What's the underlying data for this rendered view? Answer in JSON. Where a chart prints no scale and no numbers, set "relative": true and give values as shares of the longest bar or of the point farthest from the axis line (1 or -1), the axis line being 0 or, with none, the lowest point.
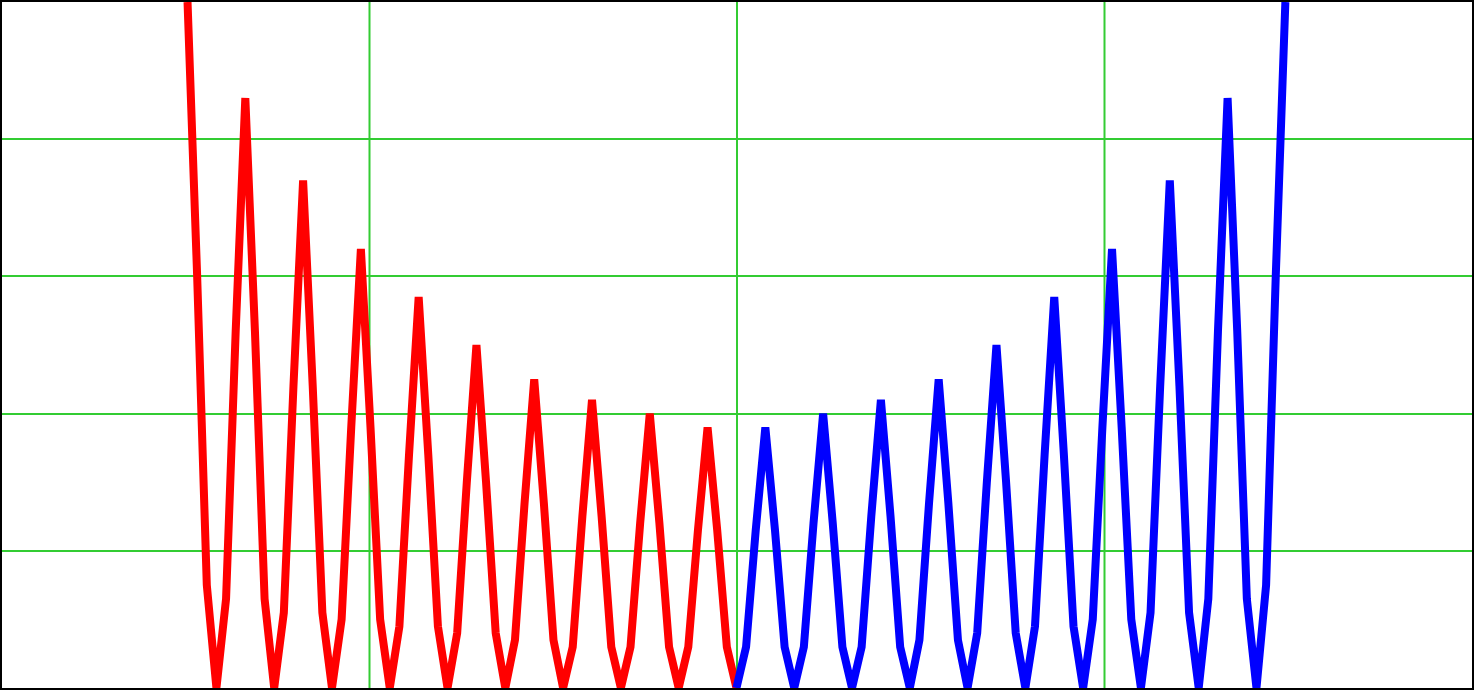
{
  "chart_data": {
    "type": "line",
    "relative": true,
    "grid": true,
    "marker": "none",
    "line_style": "solid",
    "categories": [
      null,
      null,
      null,
      null,
      null,
      null,
      null,
      null,
      null,
      null,
      null,
      null,
      null,
      null,
      null,
      null,
      null,
      null,
      null,
      null,
      null,
      null,
      null,
      null,
      null,
      null,
      null,
      null,
      null,
      null,
      null,
      null,
      null,
      null,
      null,
      null,
      null,
      null,
      null,
      null,
      null,
      null,
      null,
      null,
      null,
      null,
      null,
      null,
      null,
      null,
      null,
      null,
      null,
      null,
      null,
      null,
      null,
      null,
      null,
      null,
      null,
      null,
      null,
      null,
      null,
      null,
      null,
      null,
      null,
      null,
      null,
      null,
      null,
      null,
      null,
      null,
      null,
      null,
      null,
      null,
      null,
      null,
      null,
      null,
      null,
      null,
      null,
      null,
      null,
      null,
      null,
      null,
      null,
      null,
      null,
      null,
      null,
      null,
      null,
      null,
      null,
      null,
      null,
      null,
      null,
      null,
      null,
      null,
      null,
      null,
      null,
      null,
      null,
      null,
      null
    ],
    "series": [
      {
        "color": "#ff0000",
        "values": [
          1,
          0.6,
          0.15,
          0,
          0.13,
          0.52,
          0.86,
          0.52,
          0.13,
          0,
          0.11,
          0.44,
          0.74,
          0.44,
          0.11,
          0,
          0.1,
          0.38,
          0.64,
          0.38,
          0.1,
          0,
          0.09,
          0.34,
          0.57,
          0.34,
          0.09,
          0,
          0.08,
          0.3,
          0.5,
          0.3,
          0.08,
          0,
          0.07,
          0.27,
          0.45,
          0.27,
          0.07,
          0,
          0.06,
          0.25,
          0.42,
          0.25,
          0.06,
          0,
          0.06,
          0.24,
          0.4,
          0.24,
          0.06,
          0,
          0.06,
          0.23,
          0.38,
          0.23,
          0.06,
          0,
          null,
          null,
          null,
          null,
          null,
          null,
          null,
          null,
          null,
          null,
          null,
          null,
          null,
          null,
          null,
          null,
          null,
          null,
          null,
          null,
          null,
          null,
          null,
          null,
          null,
          null,
          null,
          null,
          null,
          null,
          null,
          null,
          null,
          null,
          null,
          null,
          null,
          null,
          null,
          null,
          null,
          null,
          null,
          null,
          null,
          null,
          null,
          null,
          null,
          null,
          null,
          null,
          null,
          null,
          null,
          null,
          null
        ]
      },
      {
        "color": "#0000ff",
        "values": [
          null,
          null,
          null,
          null,
          null,
          null,
          null,
          null,
          null,
          null,
          null,
          null,
          null,
          null,
          null,
          null,
          null,
          null,
          null,
          null,
          null,
          null,
          null,
          null,
          null,
          null,
          null,
          null,
          null,
          null,
          null,
          null,
          null,
          null,
          null,
          null,
          null,
          null,
          null,
          null,
          null,
          null,
          null,
          null,
          null,
          null,
          null,
          null,
          null,
          null,
          null,
          null,
          null,
          null,
          null,
          null,
          null,
          0,
          0.06,
          0.23,
          0.38,
          0.23,
          0.06,
          0,
          0.06,
          0.24,
          0.4,
          0.24,
          0.06,
          0,
          0.06,
          0.25,
          0.42,
          0.25,
          0.06,
          0,
          0.07,
          0.27,
          0.45,
          0.27,
          0.07,
          0,
          0.08,
          0.3,
          0.5,
          0.3,
          0.08,
          0,
          0.09,
          0.34,
          0.57,
          0.34,
          0.09,
          0,
          0.1,
          0.38,
          0.64,
          0.38,
          0.1,
          0,
          0.11,
          0.44,
          0.74,
          0.44,
          0.11,
          0,
          0.13,
          0.52,
          0.86,
          0.52,
          0.13,
          0,
          0.15,
          0.6,
          1
        ]
      }
    ]
  }
}
